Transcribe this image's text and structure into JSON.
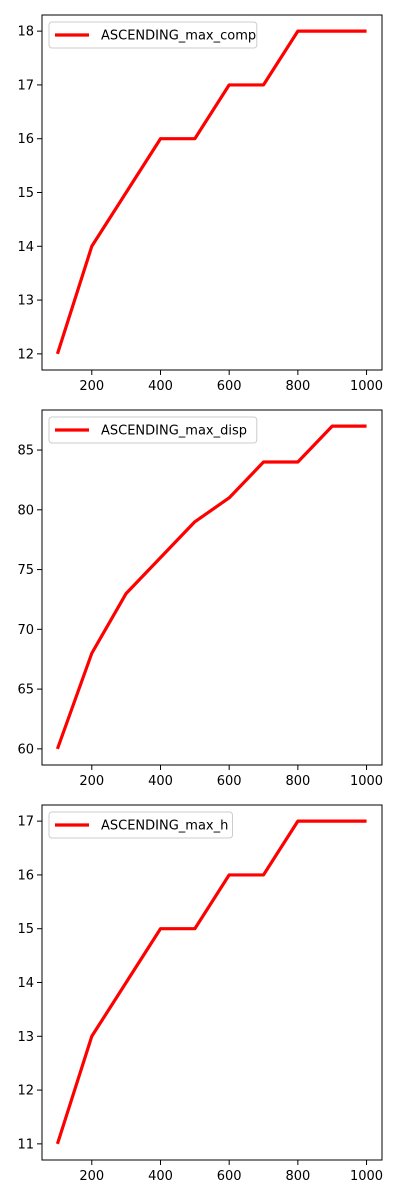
{
  "chart_data": [
    {
      "type": "line",
      "title": "",
      "xlabel": "",
      "ylabel": "",
      "xlim": [
        55,
        1045
      ],
      "ylim": [
        11.7,
        18.3
      ],
      "xticks": [
        200,
        400,
        600,
        800,
        1000
      ],
      "yticks": [
        12,
        13,
        14,
        15,
        16,
        17,
        18
      ],
      "grid": false,
      "legend_position": "top-left",
      "series": [
        {
          "name": "ASCENDING_max_comp",
          "color": "#ff0000",
          "x": [
            100,
            200,
            300,
            400,
            500,
            600,
            700,
            800,
            900,
            1000
          ],
          "y": [
            12,
            14,
            15,
            16,
            16,
            17,
            17,
            18,
            18,
            18
          ]
        }
      ]
    },
    {
      "type": "line",
      "title": "",
      "xlabel": "",
      "ylabel": "",
      "xlim": [
        55,
        1045
      ],
      "ylim": [
        58.65,
        88.35
      ],
      "xticks": [
        200,
        400,
        600,
        800,
        1000
      ],
      "yticks": [
        60,
        65,
        70,
        75,
        80,
        85
      ],
      "grid": false,
      "legend_position": "top-left",
      "series": [
        {
          "name": "ASCENDING_max_disp",
          "color": "#ff0000",
          "x": [
            100,
            200,
            300,
            400,
            500,
            600,
            700,
            800,
            900,
            1000
          ],
          "y": [
            60,
            68,
            73,
            76,
            79,
            81,
            84,
            84,
            87,
            87
          ]
        }
      ]
    },
    {
      "type": "line",
      "title": "",
      "xlabel": "",
      "ylabel": "",
      "xlim": [
        55,
        1045
      ],
      "ylim": [
        10.7,
        17.3
      ],
      "xticks": [
        200,
        400,
        600,
        800,
        1000
      ],
      "yticks": [
        11,
        12,
        13,
        14,
        15,
        16,
        17
      ],
      "grid": false,
      "legend_position": "top-left",
      "series": [
        {
          "name": "ASCENDING_max_h",
          "color": "#ff0000",
          "x": [
            100,
            200,
            300,
            400,
            500,
            600,
            700,
            800,
            900,
            1000
          ],
          "y": [
            11,
            13,
            14,
            15,
            15,
            16,
            16,
            17,
            17,
            17
          ]
        }
      ]
    }
  ]
}
